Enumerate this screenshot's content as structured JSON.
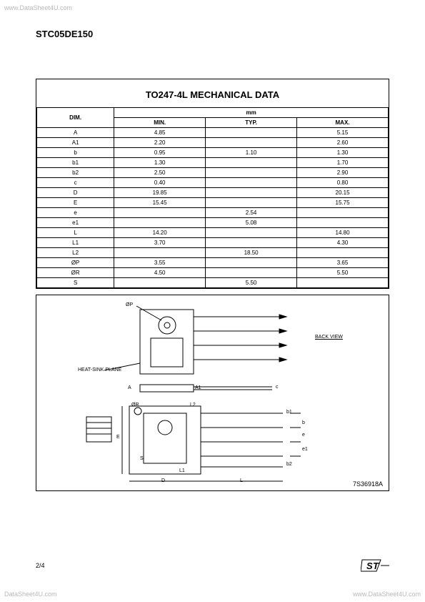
{
  "watermarks": {
    "top": "www.DataSheet4U.com",
    "bottom_right": "www.DataSheet4U.com",
    "bottom_left": "DataSheet4U.com"
  },
  "header": {
    "part_number": "STC05DE150"
  },
  "mech_table": {
    "title": "TO247-4L MECHANICAL DATA",
    "dim_label": "DIM.",
    "unit_label": "mm",
    "col_min": "MIN.",
    "col_typ": "TYP.",
    "col_max": "MAX.",
    "rows": [
      {
        "dim": "A",
        "min": "4.85",
        "typ": "",
        "max": "5.15"
      },
      {
        "dim": "A1",
        "min": "2.20",
        "typ": "",
        "max": "2.60"
      },
      {
        "dim": "b",
        "min": "0.95",
        "typ": "1.10",
        "max": "1.30"
      },
      {
        "dim": "b1",
        "min": "1.30",
        "typ": "",
        "max": "1.70"
      },
      {
        "dim": "b2",
        "min": "2.50",
        "typ": "",
        "max": "2.90"
      },
      {
        "dim": "c",
        "min": "0.40",
        "typ": "",
        "max": "0.80"
      },
      {
        "dim": "D",
        "min": "19.85",
        "typ": "",
        "max": "20.15"
      },
      {
        "dim": "E",
        "min": "15.45",
        "typ": "",
        "max": "15.75"
      },
      {
        "dim": "e",
        "min": "",
        "typ": "2.54",
        "max": ""
      },
      {
        "dim": "e1",
        "min": "",
        "typ": "5.08",
        "max": ""
      },
      {
        "dim": "L",
        "min": "14.20",
        "typ": "",
        "max": "14.80"
      },
      {
        "dim": "L1",
        "min": "3.70",
        "typ": "",
        "max": "4.30"
      },
      {
        "dim": "L2",
        "min": "",
        "typ": "18.50",
        "max": ""
      },
      {
        "dim": "ØP",
        "min": "3.55",
        "typ": "",
        "max": "3.65"
      },
      {
        "dim": "ØR",
        "min": "4.50",
        "typ": "",
        "max": "5.50"
      },
      {
        "dim": "S",
        "min": "",
        "typ": "5.50",
        "max": ""
      }
    ]
  },
  "diagram": {
    "labels": {
      "phi_p": "ØP",
      "heat_sink": "HEAT-SINK PLANE",
      "back_view": "BACK VIEW",
      "phi_r": "ØR",
      "A": "A",
      "A1": "A1",
      "E": "E",
      "D": "D",
      "L": "L",
      "L1": "L1",
      "L2": "L2",
      "S": "S",
      "b": "b",
      "b1": "b1",
      "b2": "b2",
      "c": "c",
      "e": "e",
      "e1": "e1"
    },
    "drawing_number": "7S36918A"
  },
  "footer": {
    "page": "2/4",
    "logo_text": "ST"
  },
  "colors": {
    "text": "#000000",
    "background": "#ffffff",
    "watermark": "#b8b8b8",
    "border": "#000000"
  }
}
